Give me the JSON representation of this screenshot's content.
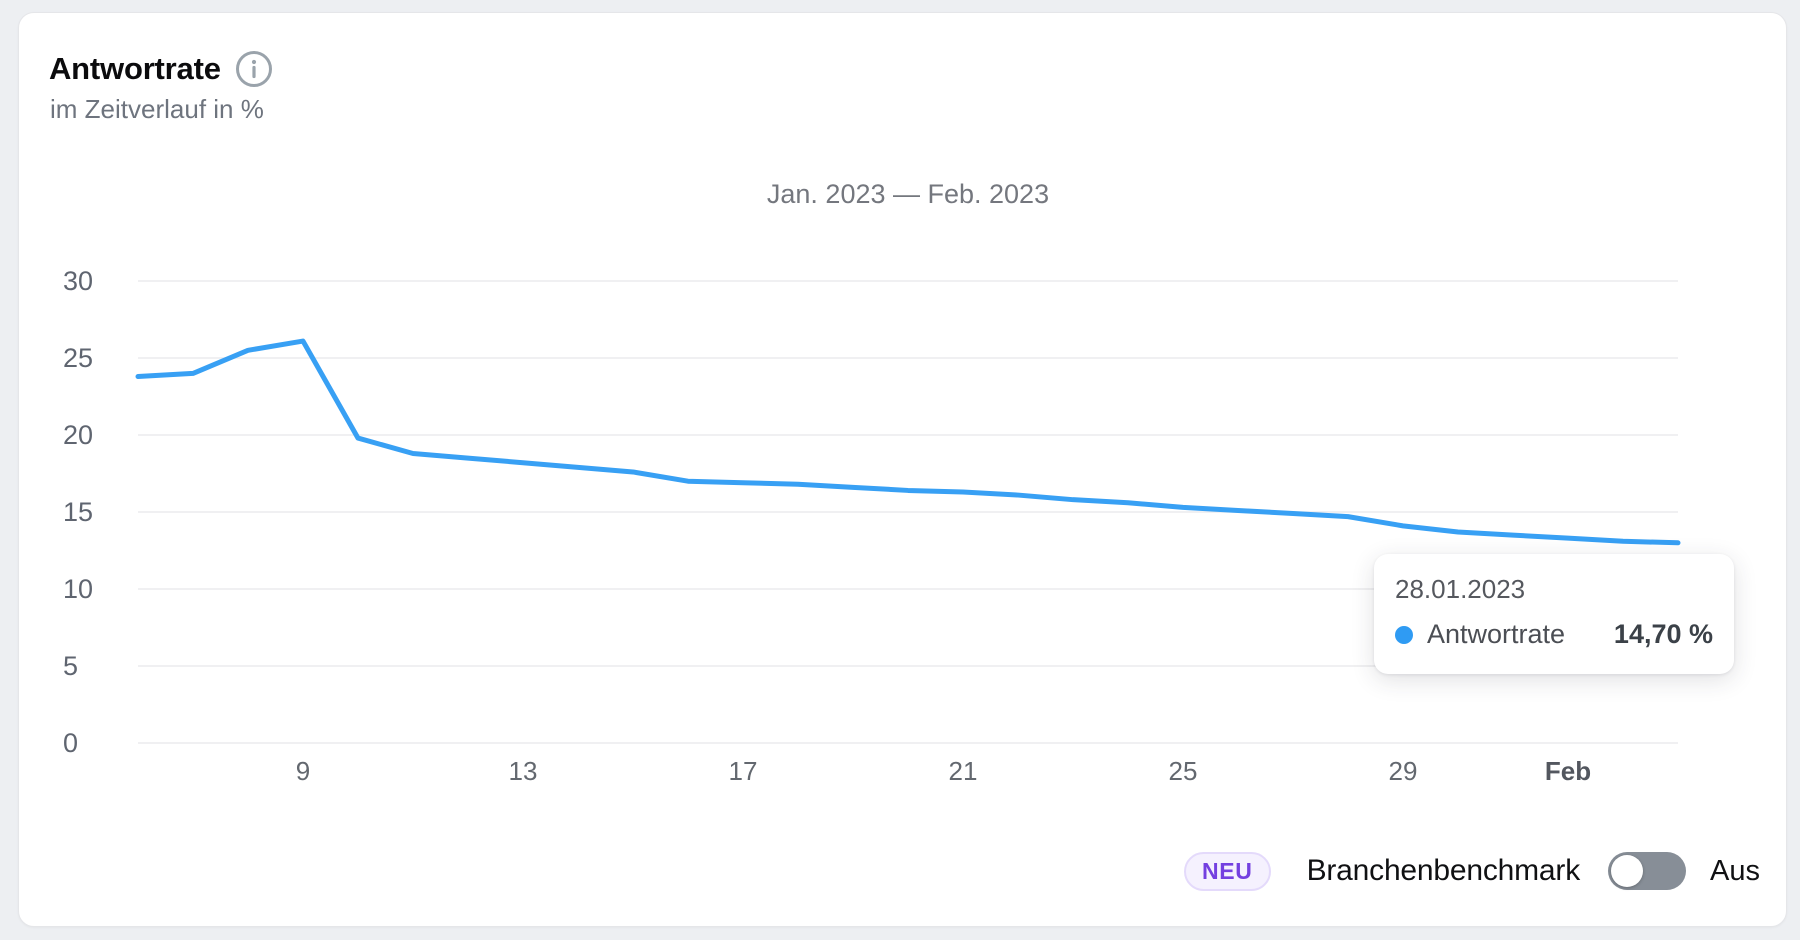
{
  "card": {
    "title": "Antwortrate",
    "subtitle": "im Zeitverlauf in %"
  },
  "chart_data": {
    "type": "line",
    "title": "Jan. 2023 — Feb. 2023",
    "ylabel": "Antwortrate in %",
    "ylim": [
      0,
      30
    ],
    "y_ticks": [
      30,
      25,
      20,
      15,
      10,
      5,
      0
    ],
    "grid": true,
    "legend_position": "none",
    "x_ticks": [
      {
        "label": "9",
        "index": 3,
        "bold": false
      },
      {
        "label": "13",
        "index": 7,
        "bold": false
      },
      {
        "label": "17",
        "index": 11,
        "bold": false
      },
      {
        "label": "21",
        "index": 15,
        "bold": false
      },
      {
        "label": "25",
        "index": 19,
        "bold": false
      },
      {
        "label": "29",
        "index": 23,
        "bold": false
      },
      {
        "label": "Feb",
        "index": 26,
        "bold": true
      }
    ],
    "series": [
      {
        "name": "Antwortrate",
        "color": "#38a0f4",
        "dates": [
          "06.01.2023",
          "07.01.2023",
          "08.01.2023",
          "09.01.2023",
          "10.01.2023",
          "11.01.2023",
          "12.01.2023",
          "13.01.2023",
          "14.01.2023",
          "15.01.2023",
          "16.01.2023",
          "17.01.2023",
          "18.01.2023",
          "19.01.2023",
          "20.01.2023",
          "21.01.2023",
          "22.01.2023",
          "23.01.2023",
          "24.01.2023",
          "25.01.2023",
          "26.01.2023",
          "27.01.2023",
          "28.01.2023",
          "29.01.2023",
          "30.01.2023",
          "31.01.2023",
          "01.02.2023",
          "02.02.2023",
          "03.02.2023"
        ],
        "values": [
          23.8,
          24.0,
          25.5,
          26.1,
          19.8,
          18.8,
          18.5,
          18.2,
          17.9,
          17.6,
          17.0,
          16.9,
          16.8,
          16.6,
          16.4,
          16.3,
          16.1,
          15.8,
          15.6,
          15.3,
          15.1,
          14.9,
          14.7,
          14.1,
          13.7,
          13.5,
          13.3,
          13.1,
          13.0
        ]
      }
    ]
  },
  "tooltip": {
    "date": "28.01.2023",
    "series_label": "Antwortrate",
    "value": "14,70 %"
  },
  "benchmark": {
    "badge": "NEU",
    "label": "Branchenbenchmark",
    "state_label": "Aus",
    "enabled": false
  },
  "colors": {
    "line_blue": "#38a0f4",
    "badge_purple": "#7440e0",
    "toggle_off_gray": "#878e97",
    "gridline": "#ebebed"
  }
}
